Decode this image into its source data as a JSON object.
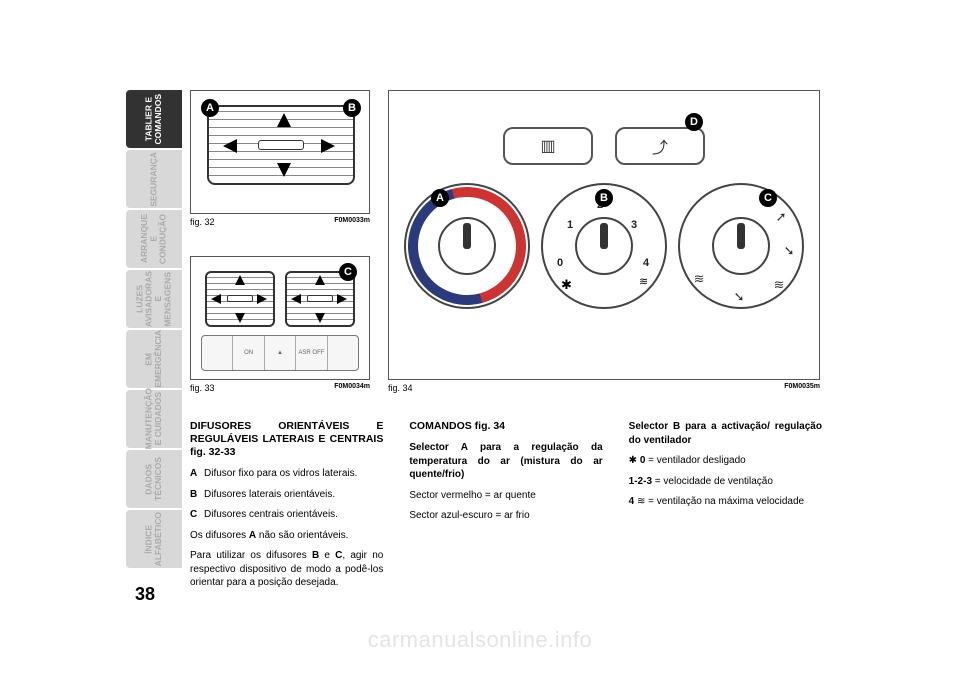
{
  "page_number": "38",
  "watermark": "carmanualsonline.info",
  "sidebar": {
    "tabs": [
      {
        "label": "TABLIER\nE COMANDOS",
        "active": true
      },
      {
        "label": "SEGURANÇA",
        "active": false
      },
      {
        "label": "ARRANQUE\nE CONDUÇÃO",
        "active": false
      },
      {
        "label": "LUZES\nAVISADORAS\nE MENSAGENS",
        "active": false
      },
      {
        "label": "EM\nEMERGÊNCIA",
        "active": false
      },
      {
        "label": "MANUTENÇÃO\nE CUIDADOS",
        "active": false
      },
      {
        "label": "DADOS\nTÉCNICOS",
        "active": false
      },
      {
        "label": "ÍNDICE\nALFABÉTICO",
        "active": false
      }
    ]
  },
  "fig32": {
    "caption": "fig. 32",
    "code": "F0M0033m",
    "labels": {
      "A": "A",
      "B": "B"
    }
  },
  "fig33": {
    "caption": "fig. 33",
    "code": "F0M0034m",
    "labels": {
      "C": "C"
    },
    "panel_buttons": [
      "",
      "ON",
      "▲",
      "ASR\nOFF",
      ""
    ]
  },
  "fig34": {
    "caption": "fig. 34",
    "code": "F0M0035m",
    "labels": {
      "A": "A",
      "B": "B",
      "C": "C",
      "D": "D"
    },
    "dialB_marks": {
      "n0": "0",
      "n1": "1",
      "n2": "2",
      "n3": "3",
      "n4": "4"
    },
    "top_buttons": [
      "▥",
      "⤴"
    ],
    "colors": {
      "hot_arc": "#cc3333",
      "cold_arc": "#2a3a7a"
    }
  },
  "col1": {
    "heading": "DIFUSORES ORIENTÁVEIS E REGULÁVEIS LATERAIS E CENTRAIS fig. 32-33",
    "itemA": {
      "k": "A",
      "t": "Difusor fixo para os vidros laterais."
    },
    "itemB": {
      "k": "B",
      "t": "Difusores laterais orientáveis."
    },
    "itemC": {
      "k": "C",
      "t": "Difusores centrais orientáveis."
    },
    "p1_a": "Os difusores ",
    "p1_b": "A",
    "p1_c": " não são orientáveis.",
    "p2_a": "Para utilizar os difusores ",
    "p2_b": "B",
    "p2_c": " e ",
    "p2_d": "C",
    "p2_e": ", agir no respectivo dispositivo de modo a podê-los orientar para a posição desejada."
  },
  "col2": {
    "heading": "COMANDOS fig. 34",
    "sub1": "Selector A para a regulação da temperatura do ar (mistura do ar quente/frio)",
    "l1": "Sector vermelho = ar quente",
    "l2": "Sector azul-escuro = ar frio"
  },
  "col3": {
    "sub1": "Selector B para a activação/ regulação do ventilador",
    "r1_pre": "",
    "r1_b": "0",
    "r1_post": " = ventilador desligado",
    "r2_b": "1-2-3",
    "r2_post": " = velocidade de ventilação",
    "r3_b": "4",
    "r3_post": " = ventilação na máxima velocidade"
  }
}
